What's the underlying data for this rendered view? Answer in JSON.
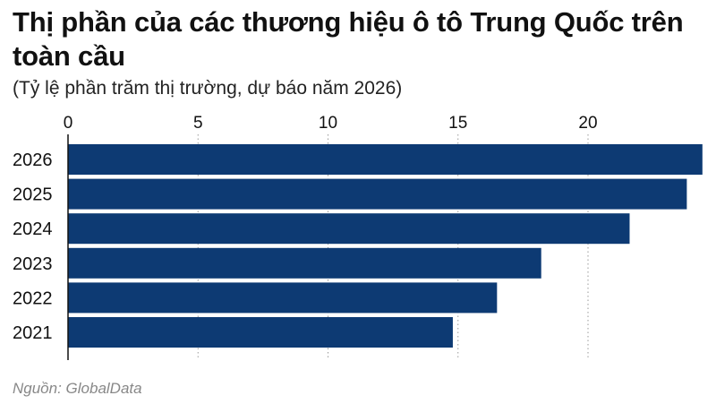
{
  "title": "Thị phần của các thương hiệu ô tô Trung Quốc trên toàn cầu",
  "subtitle": "(Tỷ lệ phần trăm thị trường, dự báo năm 2026)",
  "source": "Nguồn: GlobalData",
  "colors": {
    "bar": "#0d3a73",
    "grid": "#9a9a9a",
    "axis": "#111111"
  },
  "chart_data": {
    "type": "bar",
    "orientation": "horizontal",
    "categories": [
      "2026",
      "2025",
      "2024",
      "2023",
      "2022",
      "2021"
    ],
    "values": [
      24.4,
      23.8,
      21.6,
      18.2,
      16.5,
      14.8
    ],
    "xticks": [
      0,
      5,
      10,
      15,
      20
    ],
    "xtick_labels": [
      "0",
      "5",
      "10",
      "15",
      "20"
    ],
    "xlim": [
      0,
      24.6
    ],
    "xaxis_position": "top",
    "grid": true,
    "grid_style": "dotted vertical",
    "legend": false
  }
}
